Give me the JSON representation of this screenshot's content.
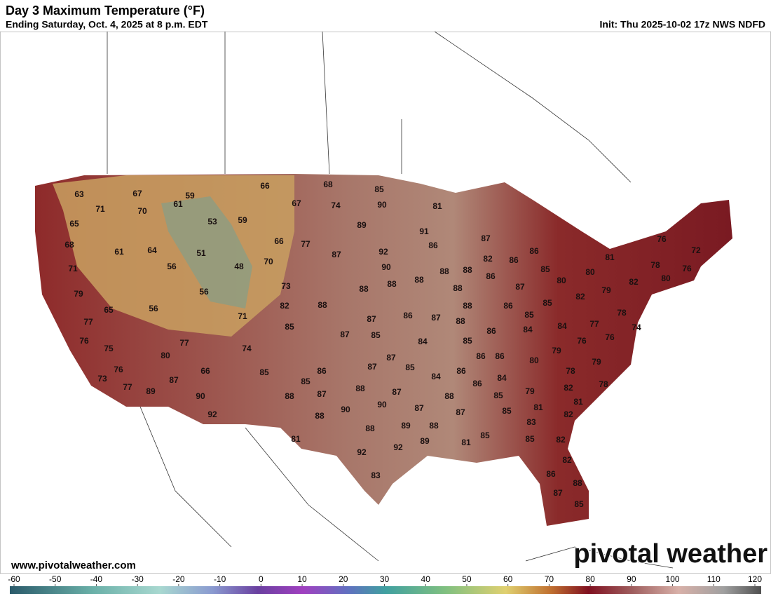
{
  "header": {
    "title": "Day 3 Maximum Temperature (°F)",
    "subtitle": "Ending Saturday, Oct. 4, 2025 at 8 p.m. EDT",
    "init": "Init: Thu 2025-10-02 17z NWS NDFD"
  },
  "footer": {
    "website": "www.pivotalweather.com",
    "logo": "pivotal weather"
  },
  "colorbar": {
    "ticks": [
      -60,
      -50,
      -40,
      -30,
      -20,
      -10,
      0,
      10,
      20,
      30,
      40,
      50,
      60,
      70,
      80,
      90,
      100,
      110,
      120
    ]
  },
  "map": {
    "labels": [
      63,
      67,
      71,
      70,
      59,
      66,
      68,
      85,
      61,
      67,
      74,
      90,
      81,
      65,
      53,
      59,
      89,
      91,
      66,
      77,
      68,
      61,
      64,
      51,
      87,
      92,
      86,
      87,
      86,
      56,
      48,
      70,
      90,
      71,
      82,
      86,
      85,
      80,
      81,
      76,
      72,
      78,
      76,
      79,
      56,
      73,
      88,
      88,
      88,
      88,
      88,
      86,
      88,
      87,
      80,
      79,
      82,
      80,
      65,
      56,
      82,
      88,
      82,
      88,
      86,
      85,
      77,
      71,
      87,
      86,
      87,
      88,
      85,
      78,
      85,
      87,
      85,
      84,
      85,
      86,
      84,
      84,
      77,
      74,
      76,
      77,
      74,
      76,
      76,
      75,
      80,
      87,
      85,
      87,
      86,
      86,
      79,
      80,
      76,
      66,
      85,
      86,
      84,
      86,
      73,
      87,
      85,
      88,
      87,
      86,
      84,
      78,
      79,
      77,
      89,
      79,
      90,
      88,
      87,
      90,
      87,
      88,
      85,
      82,
      78,
      92,
      90,
      88,
      87,
      81,
      81,
      88,
      89,
      88,
      85,
      83,
      82,
      81,
      92,
      92,
      89,
      81,
      85,
      85,
      82,
      82,
      83,
      86,
      88,
      87,
      85
    ]
  }
}
